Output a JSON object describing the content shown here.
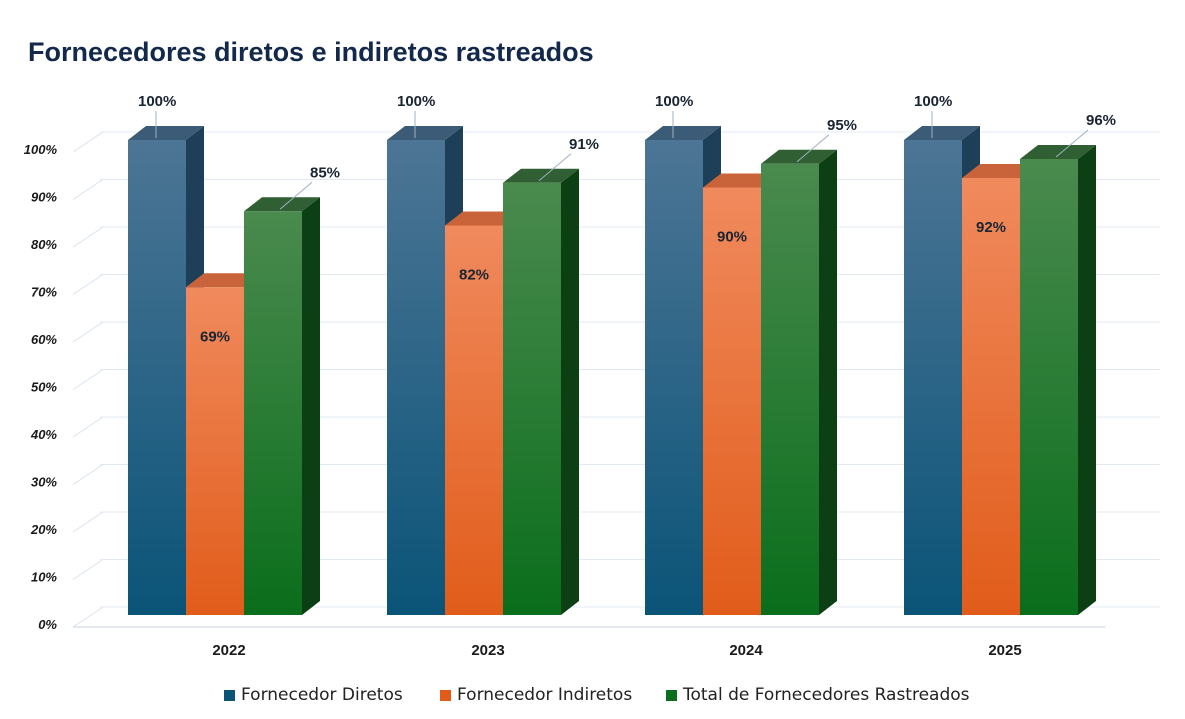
{
  "chart_data": {
    "type": "bar",
    "title": "Fornecedores diretos e indiretos rastreados",
    "xlabel": "",
    "ylabel": "",
    "categories": [
      "2022",
      "2023",
      "2024",
      "2025"
    ],
    "series": [
      {
        "name": "Fornecedor Diretos",
        "values": [
          100,
          100,
          100,
          100
        ],
        "labels": [
          "100%",
          "100%",
          "100%",
          "100%"
        ],
        "color_top": "#4d7595",
        "color_bottom": "#0a5478",
        "color_side": "#1e3f58",
        "color_cap": "#3b5b76"
      },
      {
        "name": "Fornecedor Indiretos",
        "values": [
          69,
          82,
          90,
          92
        ],
        "labels": [
          "69%",
          "82%",
          "90%",
          "92%"
        ],
        "color_top": "#f08a5d",
        "color_bottom": "#e15c1a",
        "color_side": "#b84e1a",
        "color_cap": "#c9643a"
      },
      {
        "name": "Total de Fornecedores Rastreados",
        "values": [
          85,
          91,
          95,
          96
        ],
        "labels": [
          "85%",
          "91%",
          "95%",
          "96%"
        ],
        "color_top": "#4a8a4e",
        "color_bottom": "#0a6e1c",
        "color_side": "#0d3f14",
        "color_cap": "#2f5f32"
      }
    ],
    "yticks": [
      0,
      10,
      20,
      30,
      40,
      50,
      60,
      70,
      80,
      90,
      100
    ],
    "ytick_labels": [
      "0%",
      "10%",
      "20%",
      "30%",
      "40%",
      "50%",
      "60%",
      "70%",
      "80%",
      "90%",
      "100%"
    ],
    "ylim": [
      0,
      100
    ],
    "grid": true,
    "legend_position": "bottom",
    "style": "3d-clustered-column"
  }
}
